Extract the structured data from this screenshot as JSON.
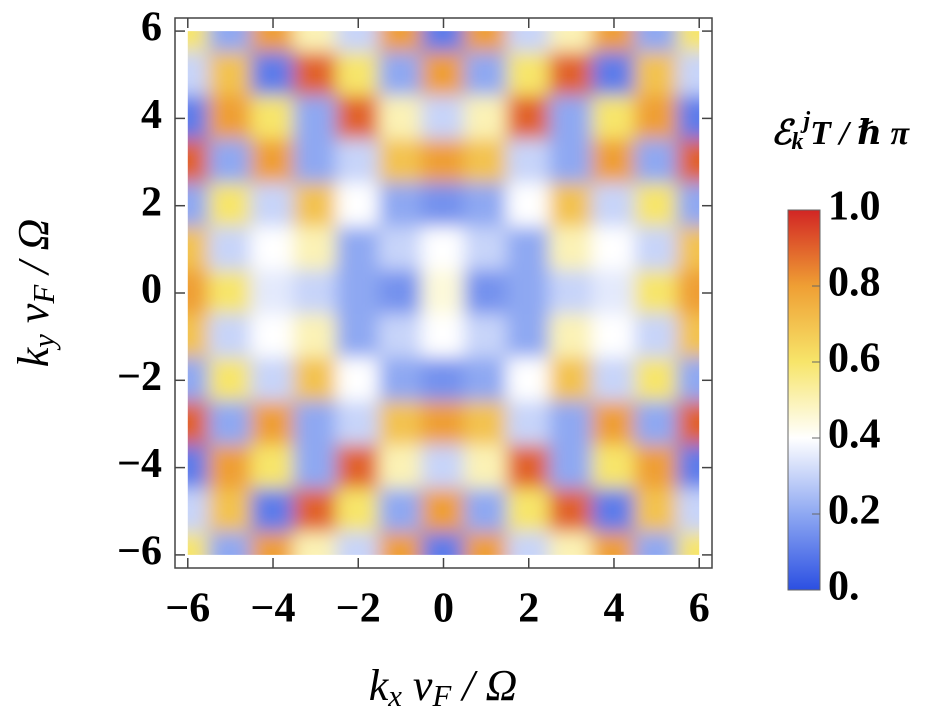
{
  "chart_data": {
    "type": "heatmap",
    "x": [
      -6,
      -5,
      -4,
      -3,
      -2,
      -1,
      0,
      1,
      2,
      3,
      4,
      5,
      6
    ],
    "y": [
      6,
      5,
      4,
      3,
      2,
      1,
      0,
      -1,
      -2,
      -3,
      -4,
      -5,
      -6
    ],
    "z": [
      [
        0.6,
        0.2,
        0.8,
        0.5,
        0.3,
        0.8,
        0.1,
        0.8,
        0.3,
        0.5,
        0.8,
        0.2,
        0.6
      ],
      [
        0.3,
        0.7,
        0.1,
        0.9,
        0.6,
        0.2,
        0.8,
        0.2,
        0.6,
        0.9,
        0.1,
        0.7,
        0.3
      ],
      [
        0.1,
        0.8,
        0.6,
        0.2,
        0.9,
        0.5,
        0.3,
        0.5,
        0.9,
        0.2,
        0.6,
        0.8,
        0.1
      ],
      [
        0.9,
        0.2,
        0.8,
        0.2,
        0.3,
        0.7,
        0.8,
        0.7,
        0.3,
        0.2,
        0.8,
        0.2,
        0.9
      ],
      [
        0.2,
        0.6,
        0.3,
        0.7,
        0.4,
        0.2,
        0.15,
        0.2,
        0.4,
        0.7,
        0.3,
        0.6,
        0.2
      ],
      [
        0.7,
        0.3,
        0.4,
        0.5,
        0.2,
        0.3,
        0.4,
        0.3,
        0.2,
        0.5,
        0.4,
        0.3,
        0.7
      ],
      [
        0.8,
        0.6,
        0.35,
        0.3,
        0.2,
        0.15,
        0.45,
        0.15,
        0.2,
        0.3,
        0.35,
        0.6,
        0.8
      ],
      [
        0.7,
        0.3,
        0.4,
        0.5,
        0.2,
        0.3,
        0.4,
        0.3,
        0.2,
        0.5,
        0.4,
        0.3,
        0.7
      ],
      [
        0.2,
        0.6,
        0.3,
        0.7,
        0.4,
        0.2,
        0.15,
        0.2,
        0.4,
        0.7,
        0.3,
        0.6,
        0.2
      ],
      [
        0.9,
        0.2,
        0.8,
        0.2,
        0.3,
        0.7,
        0.8,
        0.7,
        0.3,
        0.2,
        0.8,
        0.2,
        0.9
      ],
      [
        0.1,
        0.8,
        0.6,
        0.2,
        0.9,
        0.5,
        0.3,
        0.5,
        0.9,
        0.2,
        0.6,
        0.8,
        0.1
      ],
      [
        0.3,
        0.7,
        0.1,
        0.9,
        0.6,
        0.2,
        0.8,
        0.2,
        0.6,
        0.9,
        0.1,
        0.7,
        0.3
      ],
      [
        0.6,
        0.2,
        0.8,
        0.5,
        0.3,
        0.8,
        0.1,
        0.8,
        0.3,
        0.5,
        0.8,
        0.2,
        0.6
      ]
    ],
    "colormap": [
      "#2b4fe2",
      "#8ea8f2",
      "#ffffff",
      "#f7e56a",
      "#ef9f34",
      "#d22524"
    ],
    "clim": [
      0,
      1
    ],
    "xlim": [
      -6.3,
      6.3
    ],
    "ylim": [
      -6.3,
      6.3
    ],
    "xticks": [
      {
        "value": -6,
        "label": "−6"
      },
      {
        "value": -4,
        "label": "−4"
      },
      {
        "value": -2,
        "label": "−2"
      },
      0,
      2,
      4,
      6
    ],
    "yticks": [
      {
        "value": -6,
        "label": "−6"
      },
      {
        "value": -4,
        "label": "−4"
      },
      {
        "value": -2,
        "label": "−2"
      },
      0,
      2,
      4,
      6
    ],
    "cticks": [
      {
        "value": 0,
        "label": "0."
      },
      0.2,
      0.4,
      0.6,
      0.8,
      {
        "value": 1,
        "label": "1.0"
      }
    ],
    "xlabel": [
      {
        "text": "k"
      },
      {
        "text": "x",
        "sub": true
      },
      {
        "text": " v"
      },
      {
        "text": "F",
        "sub": true
      },
      {
        "text": " / Ω"
      }
    ],
    "ylabel": [
      {
        "text": "k"
      },
      {
        "text": "y",
        "sub": true
      },
      {
        "text": " v"
      },
      {
        "text": "F",
        "sub": true
      },
      {
        "text": " / Ω"
      }
    ],
    "colorbar_label": [
      {
        "text": "ℰ"
      },
      {
        "text": "k",
        "sub": true
      },
      {
        "text": "j",
        "sup": true
      },
      {
        "text": "T / ℏ π"
      }
    ]
  }
}
